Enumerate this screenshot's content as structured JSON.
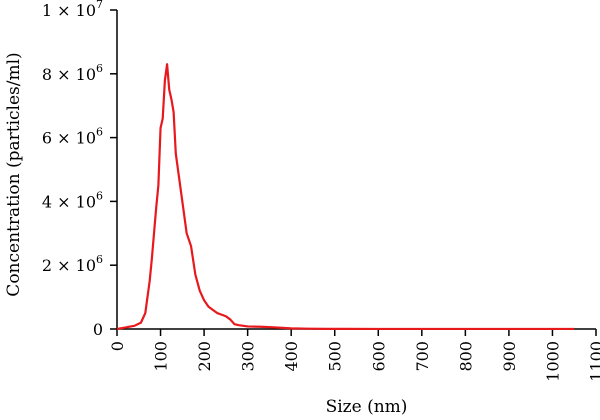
{
  "chart_data": {
    "type": "line",
    "title": "",
    "xlabel": "Size (nm)",
    "ylabel": "Concentration (particles/ml)",
    "xlim": [
      0,
      1100
    ],
    "ylim": [
      0,
      10000000
    ],
    "grid": false,
    "color": "#e8191c",
    "x_ticks": [
      {
        "value": 0,
        "label": "0"
      },
      {
        "value": 100,
        "label": "100"
      },
      {
        "value": 200,
        "label": "200"
      },
      {
        "value": 300,
        "label": "300"
      },
      {
        "value": 400,
        "label": "400"
      },
      {
        "value": 500,
        "label": "500"
      },
      {
        "value": 600,
        "label": "600"
      },
      {
        "value": 700,
        "label": "700"
      },
      {
        "value": 800,
        "label": "800"
      },
      {
        "value": 900,
        "label": "900"
      },
      {
        "value": 1000,
        "label": "1000"
      },
      {
        "value": 1100,
        "label": "1100"
      }
    ],
    "y_ticks": [
      {
        "value": 0,
        "mantissa": "0",
        "exp": ""
      },
      {
        "value": 2000000,
        "mantissa": "2 × 10",
        "exp": "6"
      },
      {
        "value": 4000000,
        "mantissa": "4 × 10",
        "exp": "6"
      },
      {
        "value": 6000000,
        "mantissa": "6 × 10",
        "exp": "6"
      },
      {
        "value": 8000000,
        "mantissa": "8 × 10",
        "exp": "6"
      },
      {
        "value": 10000000,
        "mantissa": "1 × 10",
        "exp": "7"
      }
    ],
    "series": [
      {
        "x": [
          0,
          20,
          40,
          55,
          65,
          75,
          80,
          85,
          90,
          95,
          100,
          105,
          110,
          115,
          120,
          125,
          130,
          135,
          140,
          145,
          150,
          160,
          170,
          180,
          190,
          200,
          210,
          220,
          230,
          240,
          250,
          260,
          270,
          280,
          290,
          300,
          330,
          360,
          400,
          440,
          480,
          520,
          600,
          700,
          800,
          900,
          1000,
          1050
        ],
        "y": [
          0,
          50000,
          100000,
          200000,
          500000,
          1500000,
          2200000,
          3000000,
          3800000,
          4500000,
          6300000,
          6600000,
          7800000,
          8300000,
          7500000,
          7200000,
          6800000,
          5500000,
          5000000,
          4500000,
          4000000,
          3000000,
          2600000,
          1700000,
          1200000,
          900000,
          700000,
          600000,
          500000,
          450000,
          400000,
          300000,
          150000,
          120000,
          100000,
          80000,
          70000,
          50000,
          20000,
          10000,
          5000,
          3000,
          2000,
          2000,
          2000,
          2000,
          2000,
          2000
        ]
      }
    ]
  }
}
